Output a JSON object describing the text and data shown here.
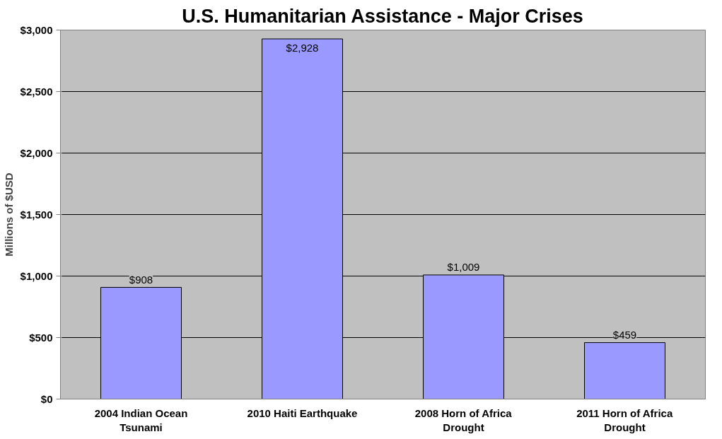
{
  "chart_data": {
    "type": "bar",
    "title": "U.S. Humanitarian Assistance - Major Crises",
    "ylabel": "Millions of $USD",
    "categories": [
      "2004 Indian Ocean Tsunami",
      "2010 Haiti Earthquake",
      "2008 Horn of Africa Drought",
      "2011 Horn of Africa Drought"
    ],
    "values": [
      908,
      2928,
      1009,
      459
    ],
    "value_labels": [
      "$908",
      "$2,928",
      "$1,009",
      "$459"
    ],
    "color": "#9999ff",
    "ylim": [
      0,
      3000
    ],
    "yticks": [
      {
        "value": 0,
        "label": "$0"
      },
      {
        "value": 500,
        "label": "$500"
      },
      {
        "value": 1000,
        "label": "$1,000"
      },
      {
        "value": 1500,
        "label": "$1,500"
      },
      {
        "value": 2000,
        "label": "$2,000"
      },
      {
        "value": 2500,
        "label": "$2,500"
      },
      {
        "value": 3000,
        "label": "$3,000"
      }
    ],
    "grid": "y"
  }
}
